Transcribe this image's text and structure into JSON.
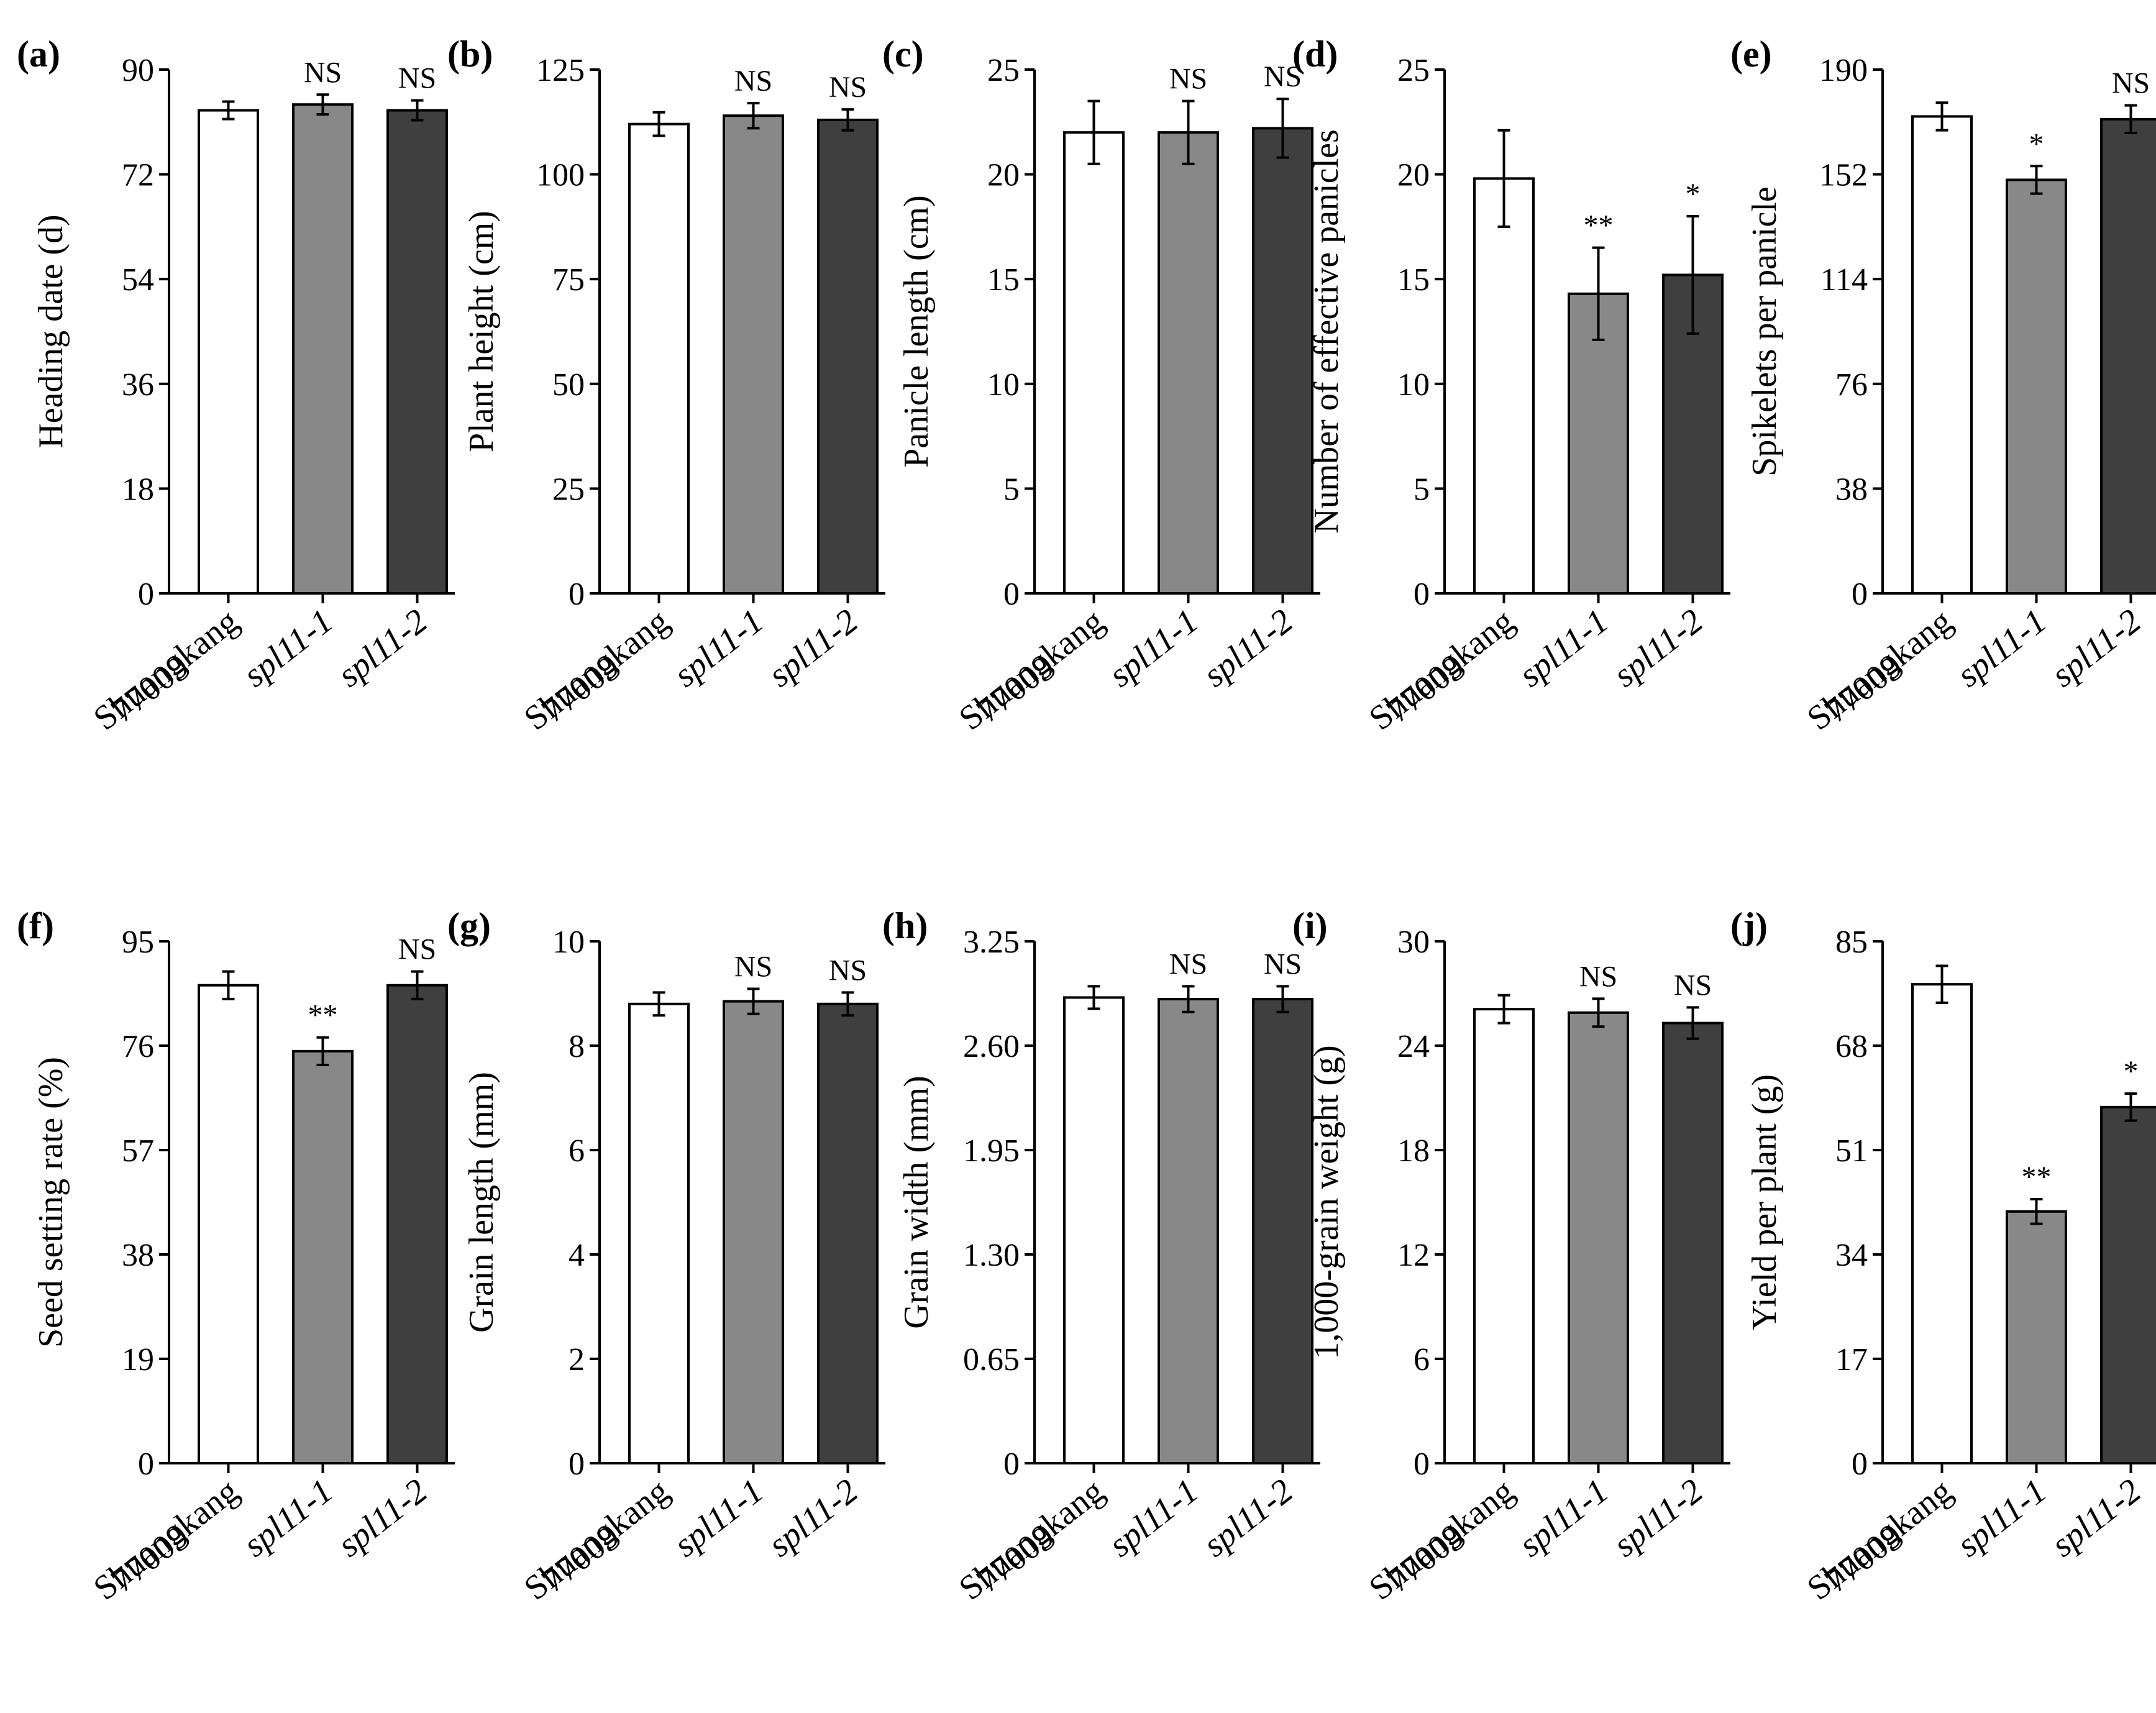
{
  "colors": {
    "wild_type": "#ffffff",
    "spl11_1": "#888888",
    "spl11_2": "#3f3f3f",
    "axis": "#000000"
  },
  "category_labels": [
    {
      "lines": [
        {
          "text": "Shuangkang",
          "italic": false
        },
        {
          "text": "77009",
          "italic": false
        }
      ]
    },
    {
      "lines": [
        {
          "text": "spl11-1",
          "italic": true
        }
      ]
    },
    {
      "lines": [
        {
          "text": "spl11-2",
          "italic": true
        }
      ]
    }
  ],
  "chart_data": [
    {
      "panel": "(a)",
      "type": "bar",
      "ylabel": "Heading date (d)",
      "categories": [
        "Shuangkang 77009",
        "spl11-1",
        "spl11-2"
      ],
      "ylim": [
        0,
        90
      ],
      "yticks": [
        "0",
        "18",
        "36",
        "54",
        "72",
        "90"
      ],
      "values": [
        83,
        84,
        83
      ],
      "errors": [
        1.5,
        1.7,
        1.7
      ],
      "significance": [
        "",
        "NS",
        "NS"
      ]
    },
    {
      "panel": "(b)",
      "type": "bar",
      "ylabel": "Plant height (cm)",
      "categories": [
        "Shuangkang 77009",
        "spl11-1",
        "spl11-2"
      ],
      "ylim": [
        0,
        125
      ],
      "yticks": [
        "0",
        "25",
        "50",
        "75",
        "100",
        "125"
      ],
      "values": [
        112,
        114,
        113
      ],
      "errors": [
        2.8,
        3.0,
        2.5
      ],
      "significance": [
        "",
        "NS",
        "NS"
      ]
    },
    {
      "panel": "(c)",
      "type": "bar",
      "ylabel": "Panicle length (cm)",
      "categories": [
        "Shuangkang 77009",
        "spl11-1",
        "spl11-2"
      ],
      "ylim": [
        0,
        25
      ],
      "yticks": [
        "0",
        "5",
        "10",
        "15",
        "20",
        "25"
      ],
      "values": [
        22,
        22,
        22.2
      ],
      "errors": [
        1.5,
        1.5,
        1.4
      ],
      "significance": [
        "",
        "NS",
        "NS"
      ]
    },
    {
      "panel": "(d)",
      "type": "bar",
      "ylabel": "Number of effective panicles",
      "categories": [
        "Shuangkang 77009",
        "spl11-1",
        "spl11-2"
      ],
      "ylim": [
        0,
        25
      ],
      "yticks": [
        "0",
        "5",
        "10",
        "15",
        "20",
        "25"
      ],
      "values": [
        19.8,
        14.3,
        15.2
      ],
      "errors": [
        2.3,
        2.2,
        2.8
      ],
      "significance": [
        "",
        "**",
        "*"
      ]
    },
    {
      "panel": "(e)",
      "type": "bar",
      "ylabel": "Spikelets per panicle",
      "categories": [
        "Shuangkang 77009",
        "spl11-1",
        "spl11-2"
      ],
      "ylim": [
        0,
        190
      ],
      "yticks": [
        "0",
        "38",
        "76",
        "114",
        "152",
        "190"
      ],
      "values": [
        173,
        150,
        172
      ],
      "errors": [
        5,
        5,
        5
      ],
      "significance": [
        "",
        "*",
        "NS"
      ]
    },
    {
      "panel": "(f)",
      "type": "bar",
      "ylabel": "Seed setting rate (%)",
      "categories": [
        "Shuangkang 77009",
        "spl11-1",
        "spl11-2"
      ],
      "ylim": [
        0,
        95
      ],
      "yticks": [
        "0",
        "19",
        "38",
        "57",
        "76",
        "95"
      ],
      "values": [
        87,
        75,
        87
      ],
      "errors": [
        2.5,
        2.5,
        2.5
      ],
      "significance": [
        "",
        "**",
        "NS"
      ]
    },
    {
      "panel": "(g)",
      "type": "bar",
      "ylabel": "Grain length (mm)",
      "categories": [
        "Shuangkang 77009",
        "spl11-1",
        "spl11-2"
      ],
      "ylim": [
        0,
        10
      ],
      "yticks": [
        "0",
        "2",
        "4",
        "6",
        "8",
        "10"
      ],
      "values": [
        8.8,
        8.85,
        8.8
      ],
      "errors": [
        0.22,
        0.24,
        0.22
      ],
      "significance": [
        "",
        "NS",
        "NS"
      ]
    },
    {
      "panel": "(h)",
      "type": "bar",
      "ylabel": "Grain width (mm)",
      "categories": [
        "Shuangkang 77009",
        "spl11-1",
        "spl11-2"
      ],
      "ylim": [
        0,
        3.25
      ],
      "yticks": [
        "0",
        "0.65",
        "1.30",
        "1.95",
        "2.60",
        "3.25"
      ],
      "values": [
        2.9,
        2.89,
        2.89
      ],
      "errors": [
        0.07,
        0.08,
        0.08
      ],
      "significance": [
        "",
        "NS",
        "NS"
      ]
    },
    {
      "panel": "(i)",
      "type": "bar",
      "ylabel": "1,000-grain weight (g)",
      "categories": [
        "Shuangkang 77009",
        "spl11-1",
        "spl11-2"
      ],
      "ylim": [
        0,
        30
      ],
      "yticks": [
        "0",
        "6",
        "12",
        "18",
        "24",
        "30"
      ],
      "values": [
        26.1,
        25.9,
        25.3
      ],
      "errors": [
        0.8,
        0.8,
        0.9
      ],
      "significance": [
        "",
        "NS",
        "NS"
      ]
    },
    {
      "panel": "(j)",
      "type": "bar",
      "ylabel": "Yield per plant (g)",
      "categories": [
        "Shuangkang 77009",
        "spl11-1",
        "spl11-2"
      ],
      "ylim": [
        0,
        85
      ],
      "yticks": [
        "0",
        "17",
        "34",
        "51",
        "68",
        "85"
      ],
      "values": [
        78,
        41,
        58
      ],
      "errors": [
        3,
        2,
        2.2
      ],
      "significance": [
        "",
        "**",
        "*"
      ]
    }
  ]
}
